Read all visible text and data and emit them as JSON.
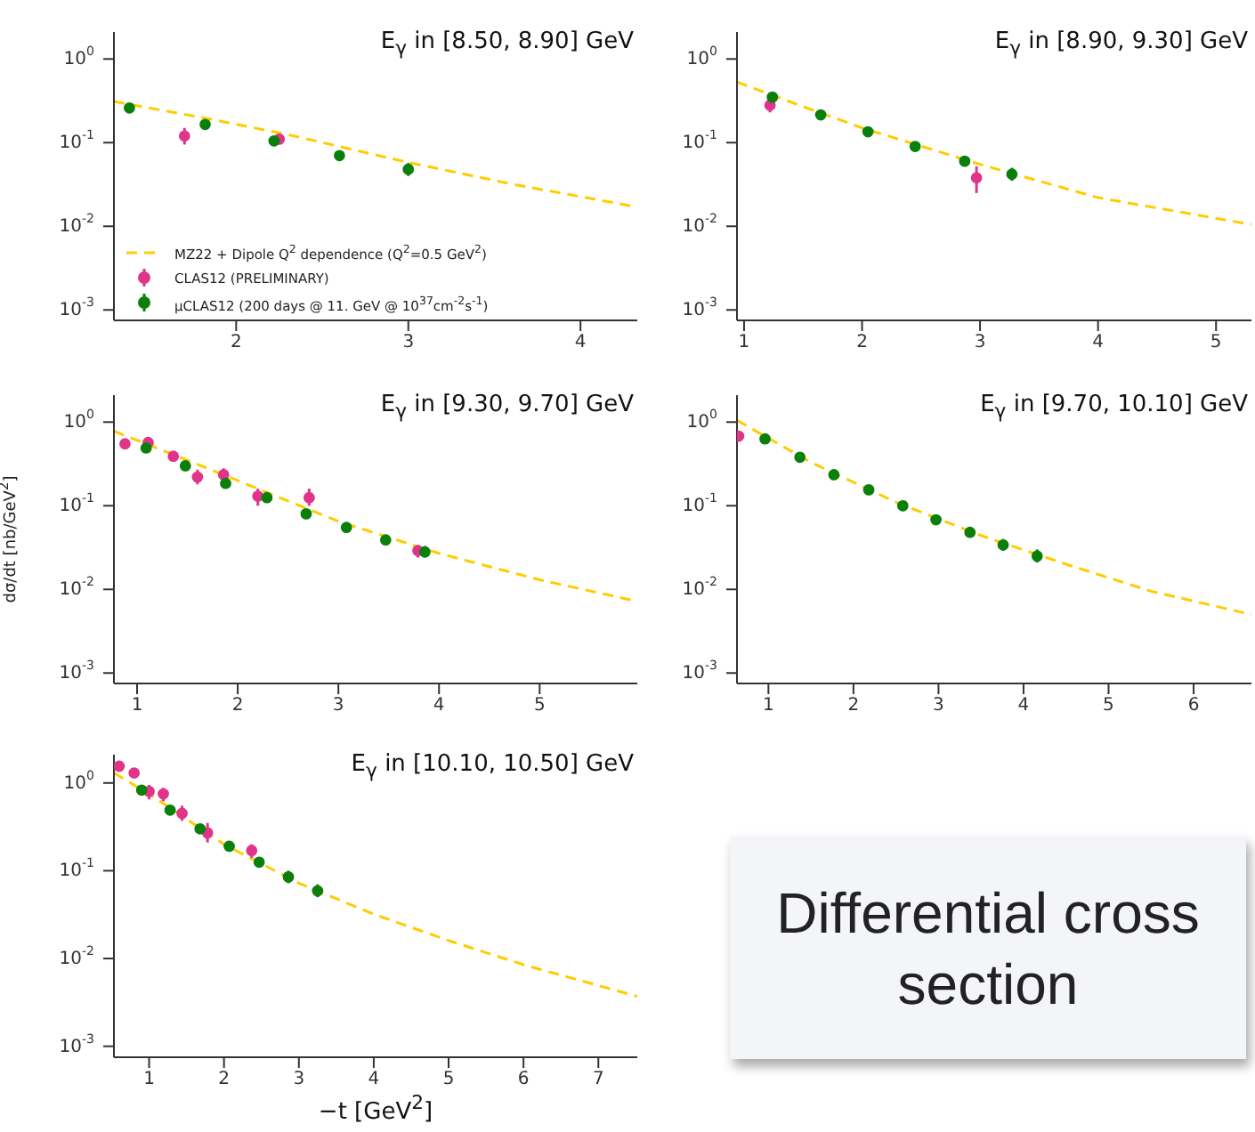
{
  "chart_data": [
    {
      "type": "scatter",
      "title": "E$_{γ}$ in [8.50, 8.90] GeV",
      "xlim": [
        1.29,
        4.33
      ],
      "xticks": [
        2,
        3,
        4
      ],
      "ylim": [
        0.00075,
        2.1
      ],
      "log": "y",
      "yticks": [
        {
          "value": 1,
          "label": "10$^{0}$"
        },
        {
          "value": 0.1,
          "label": "10$^{-1}$"
        },
        {
          "value": 0.01,
          "label": "10$^{-2}$"
        },
        {
          "value": 0.001,
          "label": "10$^{-3}$"
        }
      ],
      "legend": "bottom left",
      "series": [
        {
          "type": "line",
          "name": "MZ22 + Dipole Q$^{2}$ dependence (Q$^{2}$=0.5 GeV$^{2}$)",
          "color": "#ffcc00",
          "line_style": "dashed",
          "marker": "none",
          "x": [
            1.29,
            1.8,
            2.3,
            3.0,
            3.6,
            4.33
          ],
          "values": [
            0.31,
            0.2,
            0.125,
            0.058,
            0.032,
            0.017
          ]
        },
        {
          "type": "scatter",
          "name": "CLAS12 (PRELIMINARY)",
          "color": "#e0338a",
          "marker": "circle",
          "x": [
            1.7,
            2.25
          ],
          "values": [
            0.12,
            0.11
          ],
          "errors": [
            [
              0.095,
              0.15
            ],
            null
          ]
        },
        {
          "type": "scatter",
          "name": "μCLAS12 (200 days @ 11. GeV @ 10$^{37}$cm$^{-2}$s$^{-1}$)",
          "color": "#0a800a",
          "marker": "circle",
          "x": [
            1.38,
            1.82,
            2.22,
            2.6,
            3.0
          ],
          "values": [
            0.26,
            0.165,
            0.105,
            0.07,
            0.048
          ],
          "errors": [
            null,
            null,
            null,
            null,
            [
              0.04,
              0.057
            ]
          ]
        }
      ]
    },
    {
      "type": "scatter",
      "title": "E$_{γ}$ in [8.90, 9.30] GeV",
      "xlim": [
        0.94,
        5.3
      ],
      "xticks": [
        1,
        2,
        3,
        4,
        5
      ],
      "ylim": [
        0.00075,
        2.1
      ],
      "log": "y",
      "yticks": [
        {
          "value": 1,
          "label": "10$^{0}$"
        },
        {
          "value": 0.1,
          "label": "10$^{-1}$"
        },
        {
          "value": 0.01,
          "label": "10$^{-2}$"
        },
        {
          "value": 0.001,
          "label": "10$^{-3}$"
        }
      ],
      "series": [
        {
          "type": "line",
          "color": "#ffcc00",
          "line_style": "dashed",
          "marker": "none",
          "x": [
            0.94,
            1.5,
            2.0,
            3.0,
            4.0,
            5.3
          ],
          "values": [
            0.53,
            0.27,
            0.15,
            0.055,
            0.022,
            0.0105
          ]
        },
        {
          "type": "scatter",
          "color": "#e0338a",
          "marker": "circle",
          "x": [
            1.22,
            2.97
          ],
          "values": [
            0.28,
            0.038
          ],
          "errors": [
            [
              0.23,
              0.33
            ],
            [
              0.025,
              0.052
            ]
          ]
        },
        {
          "type": "scatter",
          "color": "#0a800a",
          "marker": "circle",
          "x": [
            1.24,
            1.65,
            2.05,
            2.45,
            2.87,
            3.27
          ],
          "values": [
            0.35,
            0.215,
            0.135,
            0.09,
            0.06,
            0.042
          ],
          "errors": [
            null,
            null,
            null,
            null,
            null,
            [
              0.035,
              0.05
            ]
          ]
        }
      ]
    },
    {
      "type": "scatter",
      "title": "E$_{γ}$ in [9.30, 9.70] GeV",
      "ylabel": "dσ/dt [nb/GeV$^{2}$]",
      "xlim": [
        0.77,
        5.97
      ],
      "xticks": [
        1,
        2,
        3,
        4,
        5
      ],
      "ylim": [
        0.00075,
        2.1
      ],
      "log": "y",
      "yticks": [
        {
          "value": 1,
          "label": "10$^{0}$"
        },
        {
          "value": 0.1,
          "label": "10$^{-1}$"
        },
        {
          "value": 0.01,
          "label": "10$^{-2}$"
        },
        {
          "value": 0.001,
          "label": "10$^{-3}$"
        }
      ],
      "series": [
        {
          "type": "line",
          "color": "#ffcc00",
          "line_style": "dashed",
          "marker": "none",
          "x": [
            0.77,
            1.5,
            2.0,
            3.0,
            4.0,
            5.0,
            5.97
          ],
          "values": [
            0.78,
            0.35,
            0.2,
            0.065,
            0.027,
            0.013,
            0.0072
          ]
        },
        {
          "type": "scatter",
          "color": "#e0338a",
          "marker": "circle",
          "x": [
            0.88,
            1.11,
            1.36,
            1.6,
            1.86,
            2.2,
            2.71,
            3.79
          ],
          "values": [
            0.55,
            0.57,
            0.39,
            0.22,
            0.235,
            0.13,
            0.125,
            0.029
          ],
          "errors": [
            null,
            null,
            null,
            [
              0.18,
              0.27
            ],
            [
              0.2,
              0.28
            ],
            [
              0.1,
              0.16
            ],
            [
              0.1,
              0.16
            ],
            [
              0.024,
              0.034
            ]
          ]
        },
        {
          "type": "scatter",
          "color": "#0a800a",
          "marker": "circle",
          "x": [
            1.09,
            1.48,
            1.88,
            2.29,
            2.68,
            3.08,
            3.47,
            3.86
          ],
          "values": [
            0.49,
            0.3,
            0.185,
            0.125,
            0.08,
            0.055,
            0.039,
            0.028
          ],
          "errors": [
            null,
            null,
            null,
            null,
            null,
            null,
            [
              0.034,
              0.045
            ],
            [
              0.024,
              0.033
            ]
          ]
        }
      ]
    },
    {
      "type": "scatter",
      "title": "E$_{γ}$ in [9.70, 10.10] GeV",
      "xlim": [
        0.63,
        6.68
      ],
      "xticks": [
        1,
        2,
        3,
        4,
        5,
        6
      ],
      "ylim": [
        0.00075,
        2.1
      ],
      "log": "y",
      "yticks": [
        {
          "value": 1,
          "label": "10$^{0}$"
        },
        {
          "value": 0.1,
          "label": "10$^{-1}$"
        },
        {
          "value": 0.01,
          "label": "10$^{-2}$"
        },
        {
          "value": 0.001,
          "label": "10$^{-3}$"
        }
      ],
      "series": [
        {
          "type": "line",
          "color": "#ffcc00",
          "line_style": "dashed",
          "marker": "none",
          "x": [
            0.63,
            1.5,
            2.5,
            3.5,
            4.5,
            5.5,
            6.68
          ],
          "values": [
            1.05,
            0.33,
            0.11,
            0.044,
            0.02,
            0.0095,
            0.005
          ]
        },
        {
          "type": "scatter",
          "color": "#e0338a",
          "marker": "circle",
          "x": [
            0.65
          ],
          "values": [
            0.68
          ]
        },
        {
          "type": "scatter",
          "color": "#0a800a",
          "marker": "circle",
          "x": [
            0.96,
            1.37,
            1.77,
            2.18,
            2.58,
            2.97,
            3.37,
            3.76,
            4.16
          ],
          "values": [
            0.63,
            0.38,
            0.235,
            0.155,
            0.1,
            0.068,
            0.048,
            0.034,
            0.025
          ],
          "errors": [
            null,
            null,
            null,
            null,
            null,
            null,
            null,
            [
              0.029,
              0.04
            ],
            [
              0.021,
              0.03
            ]
          ]
        }
      ]
    },
    {
      "type": "scatter",
      "title": "E$_{γ}$ in [10.10, 10.50] GeV",
      "xlabel": "−t [GeV$^{2}$]",
      "xlim": [
        0.53,
        7.52
      ],
      "xticks": [
        1,
        2,
        3,
        4,
        5,
        6,
        7
      ],
      "ylim": [
        0.00075,
        2.1
      ],
      "log": "y",
      "yticks": [
        {
          "value": 1,
          "label": "10$^{0}$"
        },
        {
          "value": 0.1,
          "label": "10$^{-1}$"
        },
        {
          "value": 0.01,
          "label": "10$^{-2}$"
        },
        {
          "value": 0.001,
          "label": "10$^{-3}$"
        }
      ],
      "series": [
        {
          "type": "line",
          "color": "#ffcc00",
          "line_style": "dashed",
          "marker": "none",
          "x": [
            0.53,
            1.0,
            2.0,
            3.0,
            4.0,
            5.0,
            6.0,
            7.52
          ],
          "values": [
            1.3,
            0.75,
            0.2,
            0.072,
            0.032,
            0.016,
            0.0085,
            0.0037
          ]
        },
        {
          "type": "scatter",
          "color": "#e0338a",
          "marker": "circle",
          "x": [
            0.6,
            0.8,
            1.0,
            1.19,
            1.44,
            1.78,
            2.37
          ],
          "values": [
            1.55,
            1.3,
            0.8,
            0.75,
            0.45,
            0.27,
            0.17
          ],
          "errors": [
            null,
            null,
            [
              0.65,
              0.95
            ],
            [
              0.62,
              0.88
            ],
            [
              0.37,
              0.55
            ],
            [
              0.21,
              0.35
            ],
            [
              0.14,
              0.2
            ]
          ]
        },
        {
          "type": "scatter",
          "color": "#0a800a",
          "marker": "circle",
          "x": [
            0.9,
            1.28,
            1.68,
            2.07,
            2.47,
            2.86,
            3.25
          ],
          "values": [
            0.83,
            0.49,
            0.3,
            0.19,
            0.125,
            0.085,
            0.059
          ],
          "errors": [
            null,
            null,
            null,
            null,
            null,
            [
              0.072,
              0.1
            ],
            [
              0.05,
              0.07
            ]
          ]
        }
      ]
    },
    {
      "type": "other",
      "annotations": [
        "Differential cross section"
      ]
    }
  ]
}
